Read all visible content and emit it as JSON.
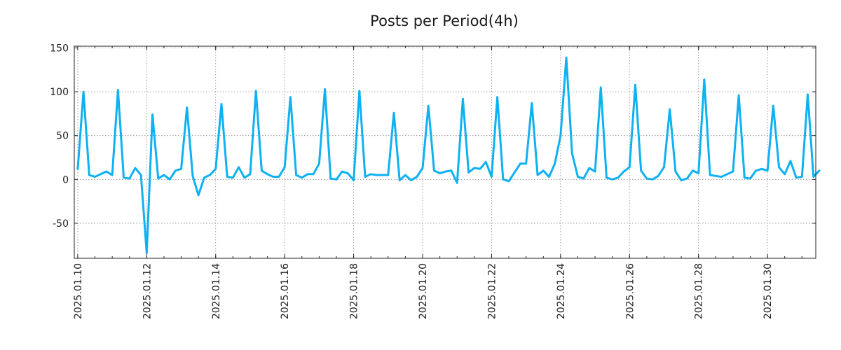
{
  "chart_data": {
    "type": "line",
    "title": "Posts per Period(4h)",
    "xlabel": "",
    "ylabel": "",
    "x_start": "2025.01.10",
    "x_step_hours": 4,
    "ylim": [
      -90,
      152
    ],
    "yticks": [
      -50,
      0,
      50,
      100,
      150
    ],
    "ytick_labels": [
      "-50",
      "0",
      "50",
      "100",
      "150"
    ],
    "xtick_labels": [
      "2025.01.10",
      "2025.01.12",
      "2025.01.14",
      "2025.01.16",
      "2025.01.18",
      "2025.01.20",
      "2025.01.22",
      "2025.01.24",
      "2025.01.26",
      "2025.01.28",
      "2025.01.30"
    ],
    "xtick_positions_days": [
      0,
      2,
      4,
      6,
      8,
      10,
      12,
      14,
      16,
      18,
      20
    ],
    "minor_tick_step_days": 0.5,
    "x_range_days": [
      -0.1,
      21.4
    ],
    "grid": true,
    "line_color": "#0eb1f2",
    "series": [
      {
        "name": "posts",
        "values": [
          12,
          100,
          5,
          3,
          6,
          9,
          5,
          102,
          2,
          1,
          13,
          5,
          -84,
          74,
          1,
          5,
          0,
          10,
          12,
          82,
          4,
          -18,
          2,
          5,
          12,
          86,
          3,
          2,
          14,
          2,
          6,
          101,
          10,
          6,
          3,
          3,
          14,
          94,
          5,
          2,
          6,
          6,
          18,
          103,
          1,
          0,
          9,
          7,
          -1,
          101,
          3,
          6,
          5,
          5,
          5,
          76,
          -1,
          5,
          -1,
          3,
          13,
          84,
          10,
          7,
          9,
          10,
          -4,
          92,
          8,
          13,
          12,
          20,
          3,
          94,
          0,
          -2,
          8,
          18,
          18,
          87,
          5,
          10,
          3,
          18,
          50,
          139,
          30,
          3,
          1,
          13,
          9,
          105,
          2,
          0,
          2,
          9,
          14,
          108,
          10,
          1,
          0,
          4,
          14,
          80,
          9,
          -1,
          1,
          10,
          7,
          114,
          5,
          4,
          3,
          6,
          9,
          96,
          2,
          1,
          10,
          12,
          10,
          84,
          14,
          6,
          21,
          2,
          3,
          97,
          3,
          10
        ]
      }
    ]
  }
}
